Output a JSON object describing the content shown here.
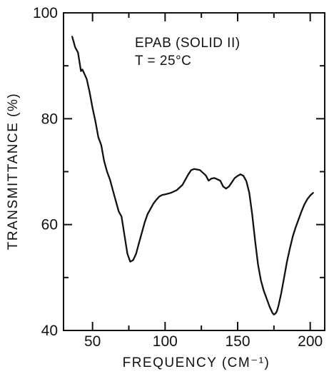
{
  "chart_data": {
    "type": "line",
    "title": "",
    "xlabel": "FREQUENCY (CM⁻¹)",
    "ylabel": "TRANSMITTANCE (%)",
    "xlim": [
      30,
      210
    ],
    "ylim": [
      40,
      100
    ],
    "x_major_ticks": [
      50,
      100,
      150,
      200
    ],
    "x_minor_ticks": [
      75,
      125,
      175
    ],
    "y_major_ticks": [
      40,
      60,
      80,
      100
    ],
    "y_minor_ticks": [
      50,
      70,
      90
    ],
    "grid": false,
    "annotations": [
      "EPAB (SOLID II)",
      "T = 25°C"
    ],
    "series": [
      {
        "color": "#111111",
        "x": [
          36,
          38,
          40,
          42,
          43,
          44,
          46,
          48,
          50,
          52,
          54,
          56,
          58,
          60,
          62,
          64,
          66,
          68,
          70,
          72,
          74,
          76,
          78,
          80,
          82,
          84,
          86,
          88,
          90,
          92,
          94,
          96,
          98,
          100,
          104,
          108,
          112,
          116,
          118,
          120,
          124,
          128,
          130,
          132,
          134,
          138,
          140,
          142,
          144,
          146,
          148,
          150,
          152,
          154,
          156,
          158,
          160,
          162,
          164,
          166,
          168,
          170,
          172,
          174,
          175,
          176,
          177,
          178,
          180,
          182,
          184,
          186,
          188,
          190,
          192,
          194,
          196,
          198,
          200,
          202
        ],
        "y": [
          95.5,
          93.5,
          92.5,
          89.0,
          89.3,
          88.7,
          87.5,
          85.0,
          82.0,
          79.5,
          76.5,
          75.0,
          72.0,
          70.0,
          68.5,
          66.5,
          64.5,
          62.5,
          61.5,
          58.0,
          54.5,
          53.0,
          53.3,
          54.5,
          56.5,
          58.5,
          60.5,
          62.0,
          63.0,
          64.0,
          64.7,
          65.3,
          65.6,
          65.7,
          66.0,
          66.5,
          67.5,
          69.5,
          70.3,
          70.5,
          70.3,
          69.3,
          68.3,
          68.7,
          68.8,
          68.3,
          67.2,
          66.8,
          67.2,
          68.0,
          68.8,
          69.2,
          69.5,
          69.2,
          68.2,
          66.0,
          62.0,
          57.0,
          52.5,
          49.5,
          47.5,
          46.0,
          44.5,
          43.3,
          43.0,
          43.2,
          43.6,
          44.5,
          47.0,
          50.0,
          53.0,
          55.5,
          57.8,
          59.5,
          61.0,
          62.5,
          63.8,
          64.8,
          65.5,
          66.0
        ]
      }
    ]
  }
}
